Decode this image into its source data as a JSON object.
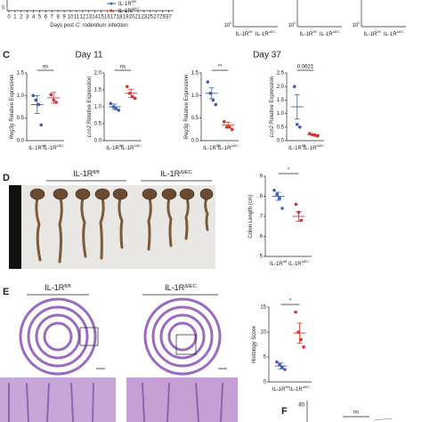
{
  "groups": [
    {
      "base": "IL-1R",
      "sup": "fl/fl"
    },
    {
      "base": "IL-1R",
      "sup": "ΔIEC"
    }
  ],
  "colors": [
    "#3a5fae",
    "#d8312e"
  ],
  "top": {
    "y_tick": "0",
    "x_ticks": [
      0,
      1,
      2,
      3,
      4,
      5,
      6,
      7,
      8,
      9,
      10,
      11,
      12,
      13,
      14,
      15,
      16,
      17,
      18,
      19,
      20,
      21,
      23,
      25,
      27,
      29,
      37
    ],
    "xlabel": [
      "Days post",
      "C. rodentium",
      "infection"
    ],
    "right_ticks": [
      {
        "base": "10",
        "sup": "0"
      },
      {
        "base": "10",
        "sup": "0"
      },
      {
        "base": "10",
        "sup": "0"
      }
    ]
  },
  "C": {
    "label": "C",
    "days": [
      "Day 11",
      "Day 37"
    ],
    "charts": [
      {
        "ylabel_gene": "Reg3g",
        "ylabel": "Relative Expression",
        "ylim": [
          0,
          1.5
        ],
        "yticks": [
          {
            "value": 0,
            "label": "0.0"
          },
          0.5,
          {
            "value": 1,
            "label": "1.0"
          },
          1.5
        ],
        "sig": "ns",
        "groups": [
          {
            "mean": 0.8,
            "sem": 0.2,
            "points": [
              1.0,
              0.9,
              0.8,
              0.35
            ]
          },
          {
            "mean": 0.95,
            "sem": 0.12,
            "points": [
              1.02,
              0.9,
              0.85
            ]
          }
        ]
      },
      {
        "ylabel_gene": "Lcn2",
        "ylabel": "Relative Expression",
        "ylim": [
          0,
          2
        ],
        "yticks": [
          {
            "value": 0,
            "label": "0.0"
          },
          0.5,
          {
            "value": 1,
            "label": "1.0"
          },
          1.5,
          {
            "value": 2,
            "label": "2.0"
          }
        ],
        "sig": "ns",
        "groups": [
          {
            "mean": 1.0,
            "sem": 0.08,
            "points": [
              1.1,
              1.0,
              0.95,
              0.9
            ]
          },
          {
            "mean": 1.4,
            "sem": 0.12,
            "points": [
              1.6,
              1.4,
              1.3,
              1.25
            ]
          }
        ]
      },
      {
        "ylabel_gene": "Reg3g",
        "ylabel": "Relative Expression",
        "ylim": [
          0,
          1.5
        ],
        "yticks": [
          {
            "value": 0,
            "label": "0.0"
          },
          0.5,
          {
            "value": 1,
            "label": "1.0"
          },
          1.5
        ],
        "sig": "**",
        "groups": [
          {
            "mean": 1.05,
            "sem": 0.12,
            "points": [
              1.3,
              1.05,
              0.9,
              0.8
            ]
          },
          {
            "mean": 0.35,
            "sem": 0.06,
            "points": [
              0.42,
              0.3,
              0.3,
              0.25
            ]
          }
        ]
      },
      {
        "ylabel_gene": "Lcn2",
        "ylabel": "Relative Expression",
        "ylim": [
          0,
          2.5
        ],
        "yticks": [
          {
            "value": 0,
            "label": "0.0"
          },
          0.5,
          {
            "value": 1,
            "label": "1.0"
          },
          1.5,
          {
            "value": 2,
            "label": "2.0"
          },
          2.5
        ],
        "sig": "0.0621",
        "groups": [
          {
            "mean": 1.25,
            "sem": 0.45,
            "points": [
              2.0,
              0.6,
              0.5
            ]
          },
          {
            "mean": 0.22,
            "sem": 0.03,
            "points": [
              0.26,
              0.22,
              0.2,
              0.17
            ]
          }
        ]
      }
    ]
  },
  "D": {
    "label": "D",
    "chart": {
      "ylabel": "Colon Length (cm)",
      "ylim": [
        5,
        9
      ],
      "yticks": [
        5,
        6,
        7,
        8,
        9
      ],
      "sig": "*",
      "groups": [
        {
          "mean": 8.0,
          "sem": 0.2,
          "points": [
            8.3,
            8.1,
            7.9,
            7.4
          ]
        },
        {
          "mean": 7.0,
          "sem": 0.25,
          "points": [
            7.6,
            7.2,
            6.8
          ]
        }
      ]
    }
  },
  "E": {
    "label": "E",
    "chart": {
      "ylabel": "Histology Score",
      "ylim": [
        0,
        15
      ],
      "yticks": [
        0,
        5,
        10,
        15
      ],
      "sig": "*",
      "groups": [
        {
          "mean": 3.2,
          "sem": 0.6,
          "points": [
            4.0,
            3.5,
            3.0,
            2.5
          ]
        },
        {
          "mean": 9.8,
          "sem": 2.0,
          "points": [
            14.0,
            10.0,
            8.5,
            7.0
          ]
        }
      ]
    }
  },
  "F": {
    "label": "F",
    "ytick": "80",
    "sig": "ns"
  }
}
